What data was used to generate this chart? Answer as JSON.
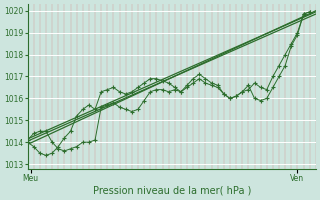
{
  "title": "",
  "xlabel": "Pression niveau de la mer( hPa )",
  "ylabel": "",
  "xlim": [
    0,
    47
  ],
  "ylim": [
    1012.8,
    1020.3
  ],
  "yticks": [
    1013,
    1014,
    1015,
    1016,
    1017,
    1018,
    1019,
    1020
  ],
  "xtick_labels": [
    "Meu",
    "Ven"
  ],
  "xtick_positions": [
    0.5,
    44
  ],
  "bg_color": "#cde5de",
  "plot_bg_color": "#cde5de",
  "line_color": "#2d6e2d",
  "figsize": [
    3.2,
    2.0
  ],
  "dpi": 100,
  "line1_x": [
    0,
    47
  ],
  "line1_y": [
    1014.05,
    1019.85
  ],
  "line2_x": [
    0,
    47
  ],
  "line2_y": [
    1013.9,
    1020.0
  ],
  "line3_x": [
    0,
    47
  ],
  "line3_y": [
    1014.15,
    1019.95
  ],
  "curve1_x": [
    0,
    1,
    2,
    3,
    4,
    5,
    6,
    7,
    8,
    9,
    10,
    11,
    12,
    13,
    14,
    15,
    16,
    17,
    18,
    19,
    20,
    21,
    22,
    23,
    24,
    25,
    26,
    27,
    28,
    29,
    30,
    31,
    32,
    33,
    34,
    35,
    36,
    37,
    38,
    39,
    40,
    41,
    42,
    43,
    44,
    45,
    46
  ],
  "curve1_y": [
    1014.1,
    1014.4,
    1014.5,
    1014.5,
    1014.0,
    1013.7,
    1013.6,
    1013.7,
    1013.8,
    1014.0,
    1014.0,
    1014.1,
    1015.6,
    1015.7,
    1015.8,
    1015.6,
    1015.5,
    1015.4,
    1015.5,
    1015.9,
    1016.3,
    1016.4,
    1016.4,
    1016.3,
    1016.4,
    1016.3,
    1016.5,
    1016.7,
    1016.9,
    1016.7,
    1016.6,
    1016.5,
    1016.2,
    1016.0,
    1016.1,
    1016.3,
    1016.4,
    1016.7,
    1016.5,
    1016.4,
    1017.0,
    1017.5,
    1018.0,
    1018.5,
    1019.0,
    1019.85,
    1019.95
  ],
  "curve2_x": [
    0,
    1,
    2,
    3,
    4,
    5,
    6,
    7,
    8,
    9,
    10,
    11,
    12,
    13,
    14,
    15,
    16,
    17,
    18,
    19,
    20,
    21,
    22,
    23,
    24,
    25,
    26,
    27,
    28,
    29,
    30,
    31,
    32,
    33,
    34,
    35,
    36,
    37,
    38,
    39,
    40,
    41,
    42,
    43,
    44,
    45,
    46
  ],
  "curve2_y": [
    1014.0,
    1013.8,
    1013.5,
    1013.4,
    1013.5,
    1013.8,
    1014.2,
    1014.5,
    1015.2,
    1015.5,
    1015.7,
    1015.5,
    1016.3,
    1016.4,
    1016.5,
    1016.3,
    1016.2,
    1016.3,
    1016.5,
    1016.7,
    1016.9,
    1016.9,
    1016.8,
    1016.7,
    1016.5,
    1016.3,
    1016.6,
    1016.9,
    1017.1,
    1016.9,
    1016.7,
    1016.6,
    1016.2,
    1016.0,
    1016.1,
    1016.3,
    1016.6,
    1016.0,
    1015.9,
    1016.0,
    1016.5,
    1017.0,
    1017.5,
    1018.4,
    1018.9,
    1019.85,
    1019.95
  ]
}
